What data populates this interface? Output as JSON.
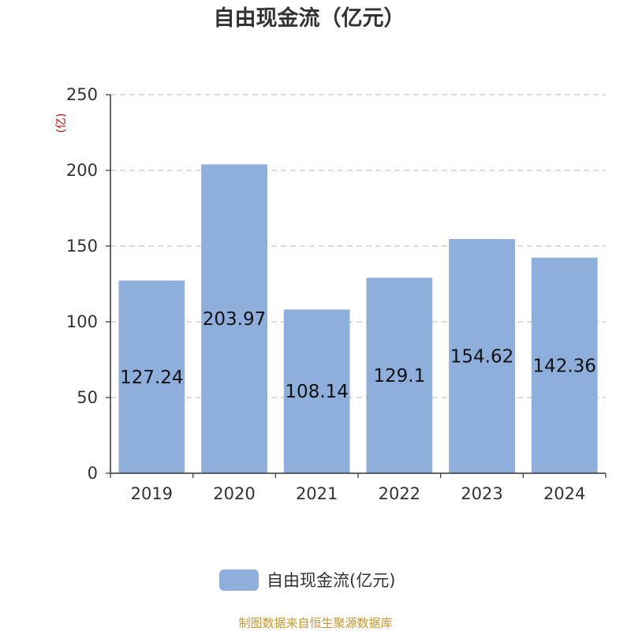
{
  "chart_data": {
    "type": "bar",
    "title": "自由现金流（亿元）",
    "ylabel": "(亿)",
    "categories": [
      "2019",
      "2020",
      "2021",
      "2022",
      "2023",
      "2024"
    ],
    "series": [
      {
        "name": "自由现金流(亿元)",
        "values": [
          127.24,
          203.97,
          108.14,
          129.1,
          154.62,
          142.36
        ],
        "color": "#8eaedb"
      }
    ],
    "ylim": [
      0,
      250
    ],
    "yticks": [
      "0",
      "50",
      "100",
      "150",
      "200",
      "250"
    ],
    "grid": true,
    "legend": "bottom"
  },
  "source": "制图数据来自恒生聚源数据库"
}
